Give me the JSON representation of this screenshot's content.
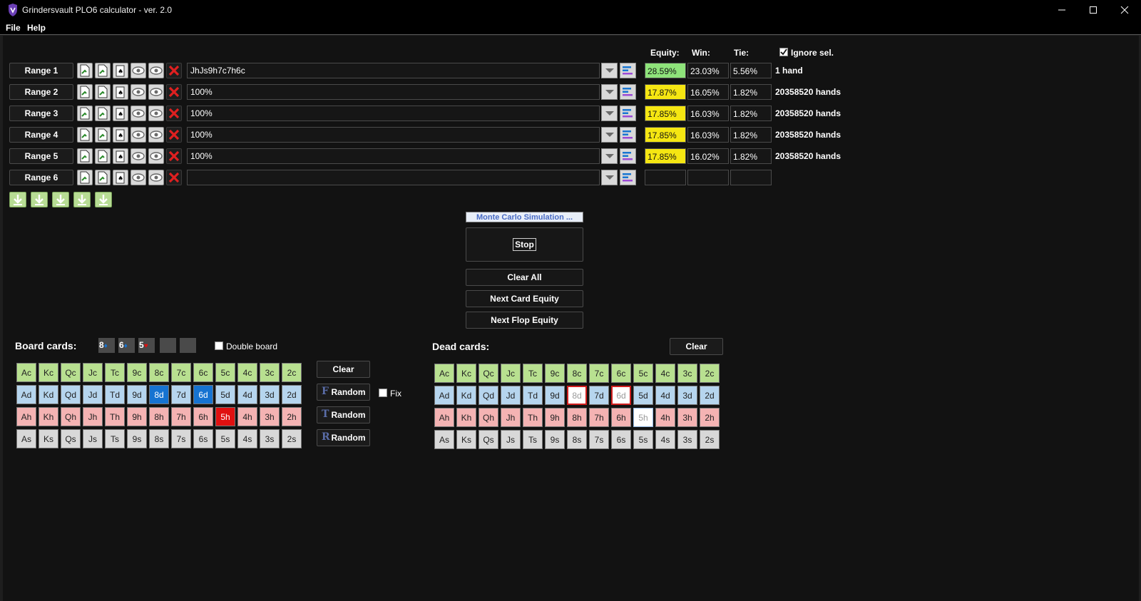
{
  "window": {
    "title": "Grindersvault PLO6 calculator - ver. 2.0"
  },
  "menu": [
    "File",
    "Help"
  ],
  "headers": {
    "equity": "Equity:",
    "win": "Win:",
    "tie": "Tie:",
    "ignore_sel": "Ignore sel.",
    "ignore_sel_checked": true
  },
  "ranges": [
    {
      "label": "Range 1",
      "value": "JhJs9h7c7h6c",
      "equity": "28.59%",
      "win": "23.03%",
      "tie": "5.56%",
      "hands": "1 hand",
      "equity_color": "#8ee37a"
    },
    {
      "label": "Range 2",
      "value": "100%",
      "equity": "17.87%",
      "win": "16.05%",
      "tie": "1.82%",
      "hands": "20358520 hands",
      "equity_color": "#f5e612"
    },
    {
      "label": "Range 3",
      "value": "100%",
      "equity": "17.85%",
      "win": "16.03%",
      "tie": "1.82%",
      "hands": "20358520 hands",
      "equity_color": "#f5e612"
    },
    {
      "label": "Range 4",
      "value": "100%",
      "equity": "17.85%",
      "win": "16.03%",
      "tie": "1.82%",
      "hands": "20358520 hands",
      "equity_color": "#f5e612"
    },
    {
      "label": "Range 5",
      "value": "100%",
      "equity": "17.85%",
      "win": "16.02%",
      "tie": "1.82%",
      "hands": "20358520 hands",
      "equity_color": "#f5e612"
    },
    {
      "label": "Range 6",
      "value": "",
      "equity": "",
      "win": "",
      "tie": "",
      "hands": "",
      "equity_color": "#161616"
    }
  ],
  "controls": {
    "monte_carlo": "Monte Carlo Simulation ...",
    "stop": "Stop",
    "clear_all": "Clear All",
    "next_card": "Next Card Equity",
    "next_flop": "Next Flop Equity"
  },
  "board": {
    "label": "Board cards:",
    "selected": [
      {
        "rank": "8",
        "suit": "♦",
        "suit_color": "#1673d1"
      },
      {
        "rank": "6",
        "suit": "♦",
        "suit_color": "#1673d1"
      },
      {
        "rank": "5",
        "suit": "♥",
        "suit_color": "#e01010"
      }
    ],
    "double_board": "Double board",
    "clear": "Clear",
    "random_flop": "Random",
    "random_turn": "Random",
    "random_river": "Random",
    "fix": "Fix",
    "glyphs": [
      "F",
      "T",
      "R"
    ]
  },
  "dead": {
    "label": "Dead cards:",
    "clear": "Clear"
  },
  "ranks": [
    "A",
    "K",
    "Q",
    "J",
    "T",
    "9",
    "8",
    "7",
    "6",
    "5",
    "4",
    "3",
    "2"
  ],
  "suits": [
    "c",
    "d",
    "h",
    "s"
  ],
  "board_selected": [
    "8d",
    "6d",
    "5h"
  ],
  "dead_disabled": [
    "8d",
    "6d",
    "5h"
  ]
}
